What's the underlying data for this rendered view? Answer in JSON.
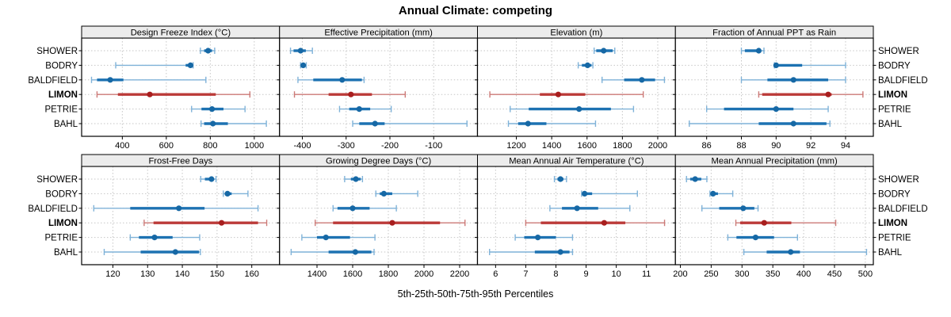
{
  "title": "Annual Climate: competing",
  "caption": "5th-25th-50th-75th-95th Percentiles",
  "colors": {
    "blue_light": "#7FB2D8",
    "blue_heavy": "#1D72B2",
    "blue_dot": "#1668A5",
    "red_light": "#CC7A77",
    "red_heavy": "#BB3A38",
    "red_dot": "#A81E1E",
    "strip_bg": "#ECECEC",
    "grid": "#C6C6C6",
    "border": "#000000",
    "text": "#000000"
  },
  "chart_data": {
    "type": "dotplot",
    "subtype": "percentile-interval-trellis",
    "percentile_labels": [
      "5th",
      "25th",
      "50th",
      "75th",
      "95th"
    ],
    "categories": [
      "SHOWER",
      "BODRY",
      "BALDFIELD",
      "LIMON",
      "PETRIE",
      "BAHL"
    ],
    "highlight": "LIMON",
    "legend_note": "rows repeated on left and right; LIMON shown bold and red",
    "panels": [
      {
        "title": "Design Freeze Index (°C)",
        "xlim": [
          215,
          1115
        ],
        "ticks": [
          400,
          600,
          800,
          1000
        ],
        "series": [
          {
            "name": "SHOWER",
            "values": [
              755,
              772,
              790,
              808,
              820
            ]
          },
          {
            "name": "BODRY",
            "values": [
              370,
              688,
              710,
              716,
              722
            ]
          },
          {
            "name": "BALDFIELD",
            "values": [
              260,
              285,
              345,
              405,
              780
            ]
          },
          {
            "name": "LIMON",
            "values": [
              285,
              380,
              525,
              825,
              980
            ]
          },
          {
            "name": "PETRIE",
            "values": [
              715,
              760,
              808,
              860,
              958
            ]
          },
          {
            "name": "BAHL",
            "values": [
              758,
              772,
              812,
              880,
              1055
            ]
          }
        ]
      },
      {
        "title": "Effective Precipitation (mm)",
        "xlim": [
          -452,
          0
        ],
        "ticks": [
          -400,
          -300,
          -200,
          -100
        ],
        "series": [
          {
            "name": "SHOWER",
            "values": [
              -427,
              -420,
              -404,
              -392,
              -377
            ]
          },
          {
            "name": "BODRY",
            "values": [
              -404,
              -400,
              -398,
              -395,
              -391
            ]
          },
          {
            "name": "BALDFIELD",
            "values": [
              -410,
              -375,
              -309,
              -264,
              -259
            ]
          },
          {
            "name": "LIMON",
            "values": [
              -418,
              -340,
              -289,
              -241,
              -165
            ]
          },
          {
            "name": "PETRIE",
            "values": [
              -315,
              -293,
              -270,
              -245,
              -197
            ]
          },
          {
            "name": "BAHL",
            "values": [
              -285,
              -270,
              -234,
              -212,
              -24
            ]
          }
        ]
      },
      {
        "title": "Elevation (m)",
        "xlim": [
          980,
          2100
        ],
        "ticks": [
          1200,
          1400,
          1600,
          1800,
          2000
        ],
        "series": [
          {
            "name": "SHOWER",
            "values": [
              1640,
              1652,
              1694,
              1745,
              1757
            ]
          },
          {
            "name": "BODRY",
            "values": [
              1550,
              1571,
              1603,
              1625,
              1633
            ]
          },
          {
            "name": "BALDFIELD",
            "values": [
              1685,
              1810,
              1910,
              1985,
              2038
            ]
          },
          {
            "name": "LIMON",
            "values": [
              1050,
              1333,
              1437,
              1590,
              1918
            ]
          },
          {
            "name": "PETRIE",
            "values": [
              1165,
              1270,
              1555,
              1735,
              1863
            ]
          },
          {
            "name": "BAHL",
            "values": [
              1155,
              1210,
              1266,
              1370,
              1648
            ]
          }
        ]
      },
      {
        "title": "Fraction of Annual PPT as Rain",
        "xlim": [
          84.2,
          95.6
        ],
        "ticks": [
          86,
          88,
          90,
          92,
          94
        ],
        "series": [
          {
            "name": "SHOWER",
            "values": [
              88,
              88.2,
              89,
              89.1,
              89.3
            ]
          },
          {
            "name": "BODRY",
            "values": [
              89.9,
              90,
              90,
              91.5,
              94
            ]
          },
          {
            "name": "BALDFIELD",
            "values": [
              88,
              89.5,
              91,
              93,
              94
            ]
          },
          {
            "name": "LIMON",
            "values": [
              89,
              89.2,
              93,
              93.2,
              95
            ]
          },
          {
            "name": "PETRIE",
            "values": [
              86,
              87,
              90,
              91,
              93
            ]
          },
          {
            "name": "BAHL",
            "values": [
              85,
              89,
              91,
              92.9,
              93.1
            ]
          }
        ]
      },
      {
        "title": "Frost-Free Days",
        "xlim": [
          111,
          168
        ],
        "ticks": [
          120,
          130,
          140,
          150,
          160
        ],
        "series": [
          {
            "name": "SHOWER",
            "values": [
              145.3,
              146.5,
              148.4,
              149,
              149.7
            ]
          },
          {
            "name": "BODRY",
            "values": [
              151.8,
              152.3,
              153,
              154.2,
              158.9
            ]
          },
          {
            "name": "BALDFIELD",
            "values": [
              114.5,
              125,
              139,
              146.4,
              161.8
            ]
          },
          {
            "name": "LIMON",
            "values": [
              129,
              131.7,
              151.3,
              161.8,
              164.3
            ]
          },
          {
            "name": "PETRIE",
            "values": [
              125,
              127.5,
              132,
              137.2,
              145
            ]
          },
          {
            "name": "BAHL",
            "values": [
              117.5,
              128,
              138,
              144.8,
              145.2
            ]
          }
        ]
      },
      {
        "title": "Growing Degree Days (°C)",
        "xlim": [
          1190,
          2300
        ],
        "ticks": [
          1400,
          1600,
          1800,
          2000,
          2200
        ],
        "series": [
          {
            "name": "SHOWER",
            "values": [
              1555,
              1590,
              1618,
              1645,
              1655
            ]
          },
          {
            "name": "BODRY",
            "values": [
              1730,
              1752,
              1775,
              1822,
              1965
            ]
          },
          {
            "name": "BALDFIELD",
            "values": [
              1490,
              1515,
              1600,
              1695,
              1845
            ]
          },
          {
            "name": "LIMON",
            "values": [
              1390,
              1490,
              1822,
              2090,
              2230
            ]
          },
          {
            "name": "PETRIE",
            "values": [
              1315,
              1400,
              1450,
              1585,
              1725
            ]
          },
          {
            "name": "BAHL",
            "values": [
              1255,
              1465,
              1615,
              1705,
              1720
            ]
          }
        ]
      },
      {
        "title": "Mean Annual Air Temperature (°C)",
        "xlim": [
          5.4,
          11.96
        ],
        "ticks": [
          6,
          7,
          8,
          9,
          10,
          11
        ],
        "series": [
          {
            "name": "SHOWER",
            "values": [
              7.95,
              8.05,
              8.15,
              8.25,
              8.35
            ]
          },
          {
            "name": "BODRY",
            "values": [
              8.85,
              8.9,
              8.95,
              9.2,
              10.7
            ]
          },
          {
            "name": "BALDFIELD",
            "values": [
              7.8,
              8.2,
              8.7,
              9.4,
              10.45
            ]
          },
          {
            "name": "LIMON",
            "values": [
              7.0,
              7.5,
              9.6,
              10.3,
              11.6
            ]
          },
          {
            "name": "PETRIE",
            "values": [
              6.65,
              6.95,
              7.4,
              8.0,
              8.55
            ]
          },
          {
            "name": "BAHL",
            "values": [
              5.8,
              7.3,
              8.15,
              8.45,
              8.55
            ]
          }
        ]
      },
      {
        "title": "Mean Annual Precipitation (mm)",
        "xlim": [
          192,
          513
        ],
        "ticks": [
          200,
          250,
          300,
          350,
          400,
          450,
          500
        ],
        "series": [
          {
            "name": "SHOWER",
            "values": [
              210,
              216,
              224,
              234,
              243
            ]
          },
          {
            "name": "BODRY",
            "values": [
              248,
              250,
              253,
              261,
              285
            ]
          },
          {
            "name": "BALDFIELD",
            "values": [
              235,
              263,
              302,
              320,
              326
            ]
          },
          {
            "name": "LIMON",
            "values": [
              290,
              297,
              336,
              380,
              452
            ]
          },
          {
            "name": "PETRIE",
            "values": [
              277,
              291,
              322,
              352,
              390
            ]
          },
          {
            "name": "BAHL",
            "values": [
              303,
              340,
              379,
              394,
              502
            ]
          }
        ]
      }
    ]
  }
}
